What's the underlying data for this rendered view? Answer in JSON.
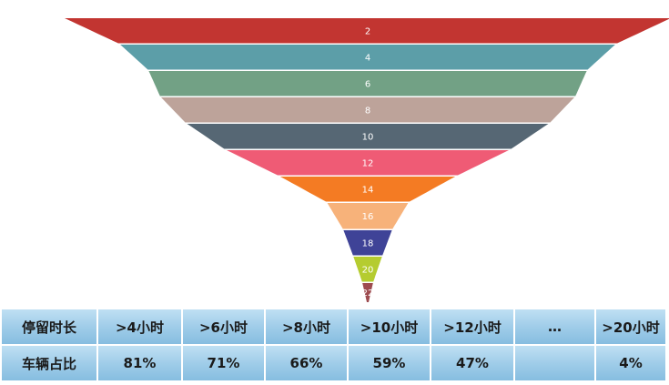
{
  "chart_data": {
    "type": "funnel",
    "labels": [
      "2",
      "4",
      "6",
      "8",
      "10",
      "12",
      "14",
      "16",
      "18",
      "20",
      "22"
    ],
    "colors": [
      "#c23531",
      "#5c9ea8",
      "#72a185",
      "#bda39a",
      "#566774",
      "#ef5b75",
      "#f47b23",
      "#f7b27a",
      "#3f4397",
      "#b5cc30",
      "#9d4b4f"
    ]
  },
  "table": {
    "header": [
      "停留时长",
      ">4小时",
      ">6小时",
      ">8小时",
      ">10小时",
      ">12小时",
      "…",
      ">20小时"
    ],
    "row": [
      "车辆占比",
      "81%",
      "71%",
      "66%",
      "59%",
      "47%",
      "",
      "4%"
    ]
  }
}
